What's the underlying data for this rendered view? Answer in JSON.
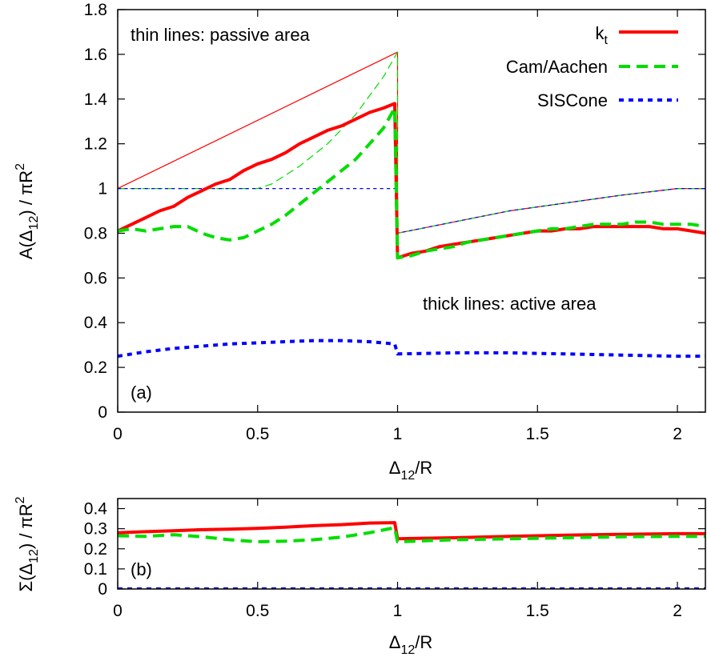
{
  "chart_data": [
    {
      "type": "line",
      "panel_label": "(a)",
      "xlabel": {
        "symbol": "Δ",
        "sub": "12",
        "rest": "/R"
      },
      "ylabel": {
        "pre": "A(Δ",
        "sub": "12",
        "mid": ") / πR",
        "sup": "2"
      },
      "xlim": [
        0,
        2.1
      ],
      "ylim": [
        0,
        1.8
      ],
      "xticks": [
        0,
        0.5,
        1,
        1.5,
        2
      ],
      "xtick_labels": [
        "0",
        "0.5",
        "1",
        "1.5",
        "2"
      ],
      "yticks": [
        0,
        0.2,
        0.4,
        0.6,
        0.8,
        1,
        1.2,
        1.4,
        1.6,
        1.8
      ],
      "ytick_labels": [
        "0",
        "0.2",
        "0.4",
        "0.6",
        "0.8",
        "1",
        "1.2",
        "1.4",
        "1.6",
        "1.8"
      ],
      "annotations": {
        "top": "thin lines: passive area",
        "bottom": "thick lines: active area"
      },
      "legend": {
        "placement": "top-right",
        "entries": [
          {
            "label": "k",
            "label_sub": "t",
            "color": "#ff0000",
            "dash": "solid"
          },
          {
            "label": "Cam/Aachen",
            "color": "#00dd00",
            "dash": "dashed"
          },
          {
            "label": "SISCone",
            "color": "#0000ff",
            "dash": "dotted"
          }
        ]
      },
      "series": [
        {
          "legend_index": 0,
          "color": "#ff0000",
          "dash": "solid",
          "width": "thin",
          "x": [
            0,
            1,
            1,
            1.4,
            1.8,
            2.0,
            2.1
          ],
          "y": [
            1.0,
            1.61,
            0.8,
            0.9,
            0.97,
            1.0,
            1.0
          ]
        },
        {
          "legend_index": 1,
          "color": "#00dd00",
          "dash": "dashed",
          "width": "thin",
          "x": [
            0,
            0.5,
            0.55,
            0.65,
            0.75,
            0.85,
            0.95,
            1,
            1,
            1.4,
            1.8,
            2.0,
            2.1
          ],
          "y": [
            1.0,
            1.0,
            1.02,
            1.1,
            1.2,
            1.33,
            1.5,
            1.61,
            0.8,
            0.9,
            0.97,
            1.0,
            1.0
          ]
        },
        {
          "legend_index": 2,
          "color": "#0000ff",
          "dash": "dotted",
          "width": "thin",
          "x": [
            0,
            1,
            1,
            1.4,
            1.8,
            2.0,
            2.1
          ],
          "y": [
            1.0,
            1.0,
            0.8,
            0.9,
            0.97,
            1.0,
            1.0
          ]
        },
        {
          "legend_index": 0,
          "color": "#ff0000",
          "dash": "solid",
          "width": "thick",
          "x": [
            0,
            0.05,
            0.1,
            0.15,
            0.2,
            0.25,
            0.3,
            0.35,
            0.4,
            0.45,
            0.5,
            0.55,
            0.6,
            0.65,
            0.7,
            0.75,
            0.8,
            0.85,
            0.9,
            0.95,
            0.99,
            1.0,
            1.05,
            1.1,
            1.15,
            1.2,
            1.25,
            1.3,
            1.35,
            1.4,
            1.45,
            1.5,
            1.55,
            1.6,
            1.65,
            1.7,
            1.75,
            1.8,
            1.85,
            1.9,
            1.95,
            2.0,
            2.05,
            2.1
          ],
          "y": [
            0.81,
            0.84,
            0.87,
            0.9,
            0.92,
            0.96,
            0.99,
            1.02,
            1.04,
            1.08,
            1.11,
            1.13,
            1.16,
            1.2,
            1.23,
            1.26,
            1.28,
            1.31,
            1.34,
            1.36,
            1.38,
            0.69,
            0.71,
            0.72,
            0.74,
            0.75,
            0.76,
            0.77,
            0.78,
            0.79,
            0.8,
            0.81,
            0.81,
            0.82,
            0.82,
            0.83,
            0.83,
            0.83,
            0.83,
            0.83,
            0.82,
            0.82,
            0.81,
            0.8
          ]
        },
        {
          "legend_index": 1,
          "color": "#00dd00",
          "dash": "dashed",
          "width": "thick",
          "x": [
            0,
            0.05,
            0.1,
            0.15,
            0.2,
            0.25,
            0.3,
            0.35,
            0.4,
            0.45,
            0.5,
            0.55,
            0.6,
            0.65,
            0.7,
            0.75,
            0.8,
            0.85,
            0.9,
            0.95,
            0.99,
            1.0,
            1.05,
            1.1,
            1.15,
            1.2,
            1.25,
            1.3,
            1.35,
            1.4,
            1.45,
            1.5,
            1.55,
            1.6,
            1.65,
            1.7,
            1.75,
            1.8,
            1.85,
            1.9,
            1.95,
            2.0,
            2.05,
            2.1
          ],
          "y": [
            0.81,
            0.82,
            0.81,
            0.82,
            0.83,
            0.83,
            0.8,
            0.78,
            0.77,
            0.78,
            0.81,
            0.84,
            0.88,
            0.93,
            0.98,
            1.03,
            1.08,
            1.13,
            1.2,
            1.27,
            1.36,
            0.69,
            0.7,
            0.72,
            0.73,
            0.74,
            0.76,
            0.77,
            0.78,
            0.79,
            0.8,
            0.81,
            0.82,
            0.82,
            0.83,
            0.84,
            0.84,
            0.84,
            0.85,
            0.85,
            0.84,
            0.84,
            0.84,
            0.83
          ]
        },
        {
          "legend_index": 2,
          "color": "#0000ff",
          "dash": "dotted",
          "width": "thick",
          "x": [
            0,
            0.1,
            0.2,
            0.3,
            0.4,
            0.5,
            0.6,
            0.7,
            0.8,
            0.9,
            0.99,
            1.0,
            1.2,
            1.4,
            1.6,
            1.8,
            2.0,
            2.1
          ],
          "y": [
            0.25,
            0.27,
            0.285,
            0.295,
            0.305,
            0.31,
            0.315,
            0.32,
            0.32,
            0.315,
            0.305,
            0.26,
            0.265,
            0.265,
            0.26,
            0.255,
            0.25,
            0.25
          ]
        }
      ]
    },
    {
      "type": "line",
      "panel_label": "(b)",
      "xlabel": {
        "symbol": "Δ",
        "sub": "12",
        "rest": "/R"
      },
      "ylabel": {
        "pre": "Σ(Δ",
        "sub": "12",
        "mid": ") / πR",
        "sup": "2"
      },
      "xlim": [
        0,
        2.1
      ],
      "ylim": [
        0,
        0.45
      ],
      "xticks": [
        0,
        0.5,
        1,
        1.5,
        2
      ],
      "xtick_labels": [
        "0",
        "0.5",
        "1",
        "1.5",
        "2"
      ],
      "yticks": [
        0,
        0.1,
        0.2,
        0.3,
        0.4
      ],
      "ytick_labels": [
        "0",
        "0.1",
        "0.2",
        "0.3",
        "0.4"
      ],
      "series": [
        {
          "legend_index": 0,
          "color": "#ff0000",
          "dash": "solid",
          "width": "thick",
          "x": [
            0,
            0.1,
            0.2,
            0.3,
            0.4,
            0.5,
            0.6,
            0.7,
            0.8,
            0.9,
            0.99,
            1.0,
            1.2,
            1.4,
            1.6,
            1.8,
            2.0,
            2.1
          ],
          "y": [
            0.28,
            0.285,
            0.29,
            0.295,
            0.298,
            0.302,
            0.308,
            0.315,
            0.32,
            0.328,
            0.33,
            0.25,
            0.255,
            0.262,
            0.268,
            0.272,
            0.275,
            0.275
          ]
        },
        {
          "legend_index": 1,
          "color": "#00dd00",
          "dash": "dashed",
          "width": "thick",
          "x": [
            0,
            0.1,
            0.2,
            0.3,
            0.4,
            0.5,
            0.6,
            0.7,
            0.8,
            0.9,
            0.99,
            1.0,
            1.2,
            1.4,
            1.6,
            1.8,
            2.0,
            2.1
          ],
          "y": [
            0.265,
            0.262,
            0.27,
            0.26,
            0.245,
            0.235,
            0.238,
            0.245,
            0.258,
            0.28,
            0.305,
            0.235,
            0.245,
            0.25,
            0.255,
            0.26,
            0.262,
            0.262
          ]
        },
        {
          "legend_index": 2,
          "color": "#0000ff",
          "dash": "dotted",
          "width": "thick",
          "x": [
            0,
            2.1
          ],
          "y": [
            0.0,
            0.0
          ]
        }
      ]
    }
  ]
}
